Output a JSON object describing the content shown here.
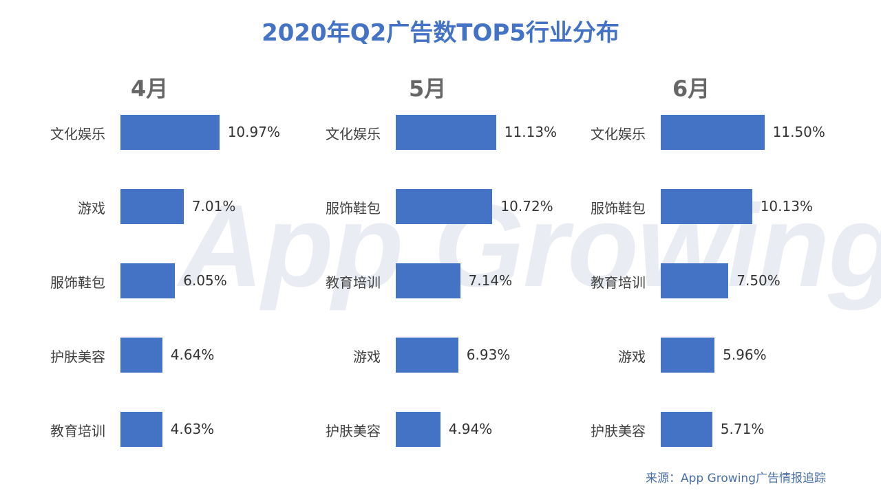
{
  "title": "2020年Q2广告数TOP5行业分布",
  "watermark": "App Growing",
  "source": "来源：App Growing广告情报追踪",
  "colors": {
    "bar": "#4472c4",
    "title": "#4472c4"
  },
  "chart_data": [
    {
      "type": "bar",
      "orientation": "horizontal",
      "title": "4月",
      "categories": [
        "文化娱乐",
        "游戏",
        "服饰鞋包",
        "护肤美容",
        "教育培训"
      ],
      "values": [
        10.97,
        7.01,
        6.05,
        4.64,
        4.63
      ],
      "labels": [
        "10.97%",
        "7.01%",
        "6.05%",
        "4.64%",
        "4.63%"
      ],
      "unit": "%"
    },
    {
      "type": "bar",
      "orientation": "horizontal",
      "title": "5月",
      "categories": [
        "文化娱乐",
        "服饰鞋包",
        "教育培训",
        "游戏",
        "护肤美容"
      ],
      "values": [
        11.13,
        10.72,
        7.14,
        6.93,
        4.94
      ],
      "labels": [
        "11.13%",
        "10.72%",
        "7.14%",
        "6.93%",
        "4.94%"
      ],
      "unit": "%"
    },
    {
      "type": "bar",
      "orientation": "horizontal",
      "title": "6月",
      "categories": [
        "文化娱乐",
        "服饰鞋包",
        "教育培训",
        "游戏",
        "护肤美容"
      ],
      "values": [
        11.5,
        10.13,
        7.5,
        5.96,
        5.71
      ],
      "labels": [
        "11.50%",
        "10.13%",
        "7.50%",
        "5.96%",
        "5.71%"
      ],
      "unit": "%"
    }
  ]
}
